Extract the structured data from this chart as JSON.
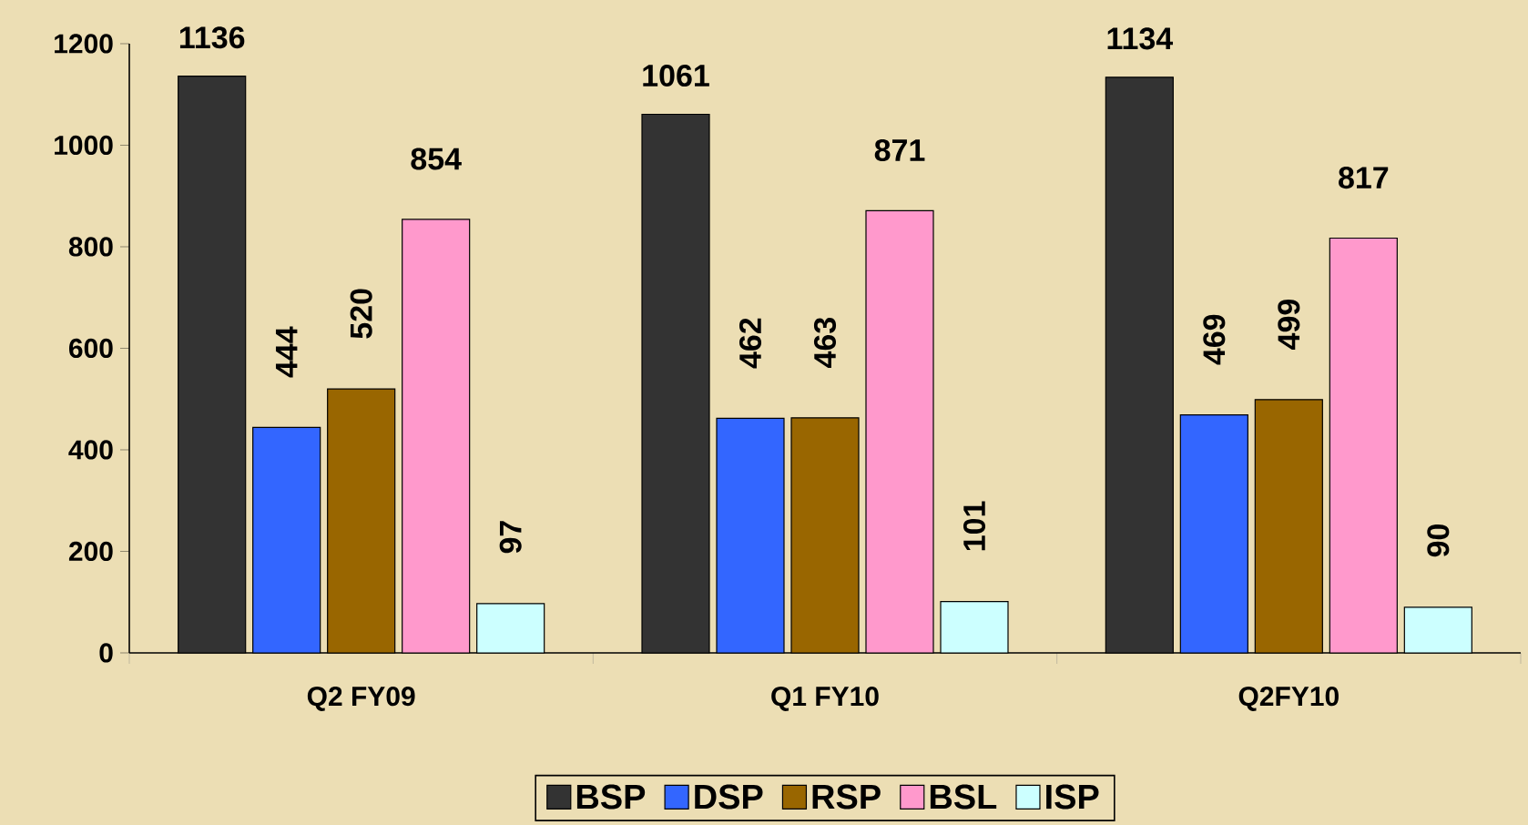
{
  "chart_data": {
    "type": "bar",
    "categories": [
      "Q2 FY09",
      "Q1 FY10",
      "Q2FY10"
    ],
    "series": [
      {
        "name": "BSP",
        "color": "#333333",
        "values": [
          1136,
          1061,
          1134
        ],
        "value_labels": [
          "1136",
          "1061",
          "1134"
        ]
      },
      {
        "name": "DSP",
        "color": "#3366ff",
        "values": [
          444,
          462,
          469
        ],
        "value_labels": [
          "444",
          "462",
          "469"
        ]
      },
      {
        "name": "RSP",
        "color": "#996600",
        "values": [
          520,
          463,
          499
        ],
        "value_labels": [
          "520",
          "463",
          "499"
        ]
      },
      {
        "name": "BSL",
        "color": "#ff99cc",
        "values": [
          854,
          871,
          817
        ],
        "value_labels": [
          "854",
          "871",
          "817"
        ]
      },
      {
        "name": "ISP",
        "color": "#ccffff",
        "values": [
          97,
          101,
          90
        ],
        "value_labels": [
          "97",
          "101",
          "90"
        ]
      }
    ],
    "ylim": [
      0,
      1200
    ],
    "yticks": [
      0,
      200,
      400,
      600,
      800,
      1000,
      1200
    ],
    "grid": false,
    "legend": "bottom"
  }
}
